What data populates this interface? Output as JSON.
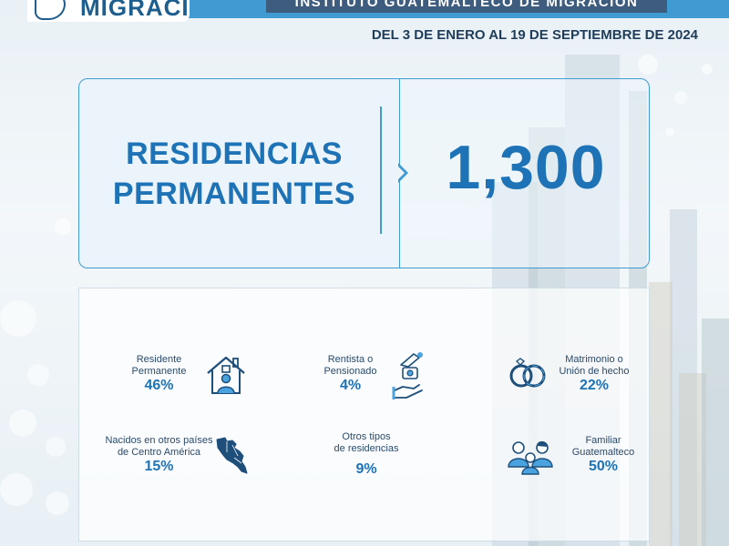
{
  "header": {
    "logo_text": "MIGRACIÓN",
    "institute": "INSTITUTO GUATEMALTECO DE MIGRACIÓN",
    "date_range": "DEL 3 DE ENERO AL 19 DE SEPTIEMBRE DE 2024"
  },
  "summary": {
    "title_line1": "RESIDENCIAS",
    "title_line2": "PERMANENTES",
    "value": "1,300"
  },
  "stats": [
    {
      "label_line1": "Residente",
      "label_line2": "Permanente",
      "value": "46%",
      "icon": "house-person-icon"
    },
    {
      "label_line1": "Rentista o",
      "label_line2": "Pensionado",
      "value": "4%",
      "icon": "hand-money-icon"
    },
    {
      "label_line1": "Matrimonio o",
      "label_line2": "Unión de hecho",
      "value": "22%",
      "icon": "wedding-rings-icon"
    },
    {
      "label_line1": "Nacidos en otros países",
      "label_line2": "de Centro América",
      "value": "15%",
      "icon": "central-america-map-icon"
    },
    {
      "label_line1": "Otros tipos",
      "label_line2": "de residencias",
      "value": "9%",
      "icon": ""
    },
    {
      "label_line1": "Familiar",
      "label_line2": "Guatemalteco",
      "value": "50%",
      "icon": "family-icon"
    }
  ],
  "colors": {
    "accent": "#1e73b6",
    "border": "#3f9bd2",
    "header": "#3d5c7e",
    "text": "#2b4a6a",
    "icon": "#1e4f7a"
  }
}
